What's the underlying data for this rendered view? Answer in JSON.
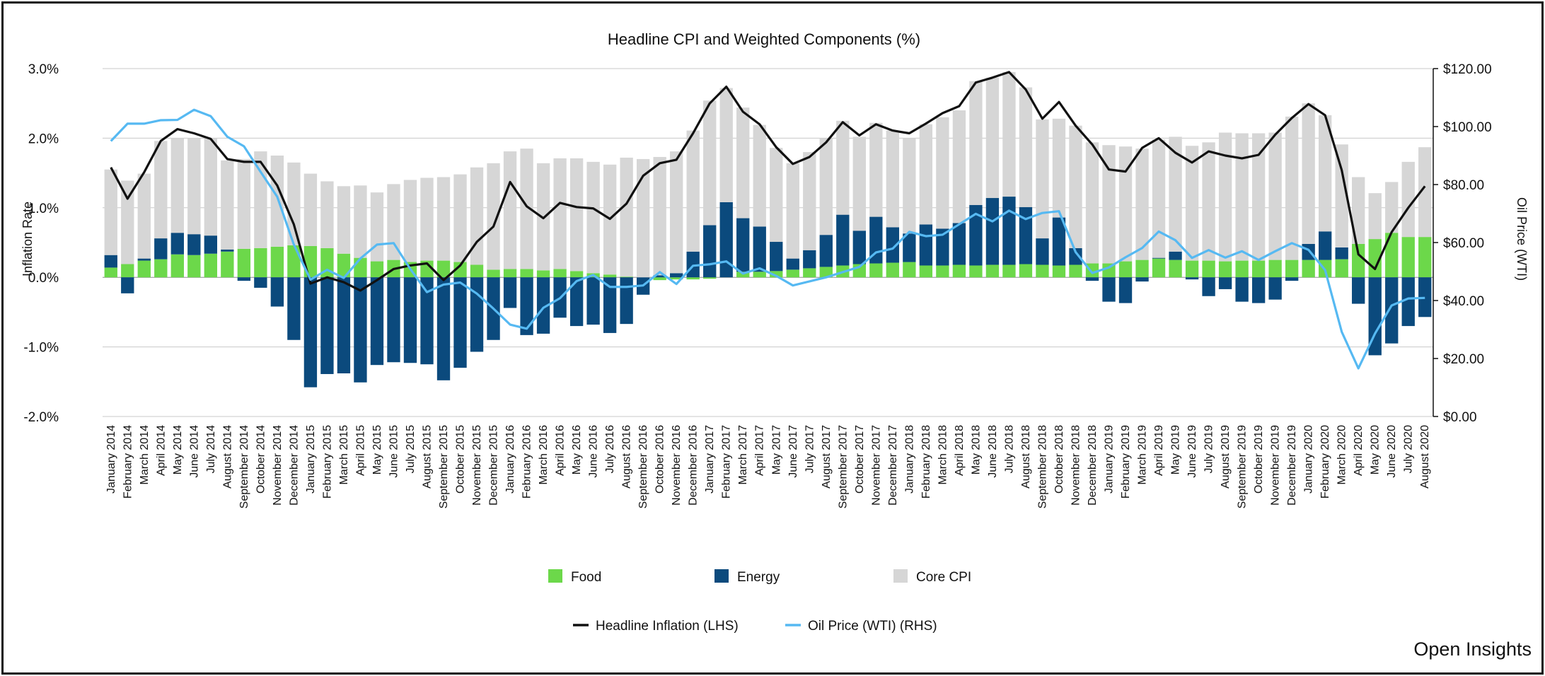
{
  "chart_data": {
    "type": "bar",
    "subtype": "stacked bar with line overlays",
    "title": "Headline CPI and Weighted Components (%)",
    "ylabel_left": "Inflation Rate",
    "ylabel_right": "Oil Price (WTI)",
    "ylim_left": [
      -2.0,
      3.0
    ],
    "ylim_right": [
      0,
      120
    ],
    "yticks_left": [
      "3.0%",
      "2.0%",
      "1.0%",
      "0.0%",
      "-1.0%",
      "-2.0%"
    ],
    "yticks_right": [
      "$120.00",
      "$100.00",
      "$80.00",
      "$60.00",
      "$40.00",
      "$20.00",
      "$0.00"
    ],
    "grid": true,
    "legend_position": "bottom",
    "categories": [
      "January 2014",
      "February 2014",
      "March 2014",
      "April 2014",
      "May 2014",
      "June 2014",
      "July 2014",
      "August 2014",
      "September 2014",
      "October 2014",
      "November 2014",
      "December 2014",
      "January 2015",
      "February 2015",
      "March 2015",
      "April 2015",
      "May 2015",
      "June 2015",
      "July 2015",
      "August 2015",
      "September 2015",
      "October 2015",
      "November 2015",
      "December 2015",
      "January 2016",
      "February 2016",
      "March 2016",
      "April 2016",
      "May 2016",
      "June 2016",
      "July 2016",
      "August 2016",
      "September 2016",
      "October 2016",
      "November 2016",
      "December 2016",
      "January 2017",
      "February 2017",
      "March 2017",
      "April 2017",
      "May 2017",
      "June 2017",
      "July 2017",
      "August 2017",
      "September 2017",
      "October 2017",
      "November 2017",
      "December 2017",
      "January 2018",
      "February 2018",
      "March 2018",
      "April 2018",
      "May 2018",
      "June 2018",
      "July 2018",
      "August 2018",
      "September 2018",
      "October 2018",
      "November 2018",
      "December 2018",
      "January 2019",
      "February 2019",
      "March 2019",
      "April 2019",
      "May 2019",
      "June 2019",
      "July 2019",
      "August 2019",
      "September 2019",
      "October 2019",
      "November 2019",
      "December 2019",
      "January 2020",
      "February 2020",
      "March 2020",
      "April 2020",
      "May 2020",
      "June 2020",
      "July 2020",
      "August 2020"
    ],
    "xtick_labels": [
      "January 2014",
      "February 2014",
      "March 2014",
      "April 2014",
      "May 2014",
      "June 2014",
      "July 2014",
      "August 2014",
      "September 2014",
      "October 2014",
      "November 2014",
      "December 2014",
      "January 2015",
      "February 2015",
      "March 2015",
      "April 2015",
      "May 2015",
      "June 2015",
      "July 2015",
      "August 2015",
      "September 2015",
      "October 2015",
      "November 2015",
      "December 2015",
      "January 2016",
      "February 2016",
      "March 2016",
      "April 2016",
      "May 2016",
      "June 2016",
      "July 2016",
      "August 2016",
      "September 2016",
      "October 2016",
      "November 2016",
      "December 2016",
      "January 2017",
      "February 2017",
      "March 2017",
      "April 2017",
      "May 2017",
      "June 2017",
      "July 2017",
      "August 2017",
      "September 2017",
      "October 2017",
      "November 2017",
      "December 2017",
      "January 2018",
      "February 2018",
      "March 2018",
      "April 2018",
      "May 2018",
      "June 2018",
      "July 2018",
      "August 2018",
      "September 2018",
      "October 2018",
      "November 2018",
      "December 2018",
      "January 2019",
      "February 2019",
      "March 2019",
      "April 2019",
      "May 2019",
      "June 2019",
      "July 2019",
      "August 2019",
      "September 2019",
      "October 2019",
      "November 2019",
      "December 2019",
      "January 2020",
      "February 2020",
      "March 2020",
      "April 2020",
      "May 2020",
      "June 2020",
      "July 2020",
      "August 2020"
    ],
    "bar_series": [
      {
        "name": "Food",
        "color": "#6cd84a",
        "values": [
          0.14,
          0.19,
          0.24,
          0.26,
          0.33,
          0.32,
          0.34,
          0.37,
          0.41,
          0.42,
          0.44,
          0.46,
          0.45,
          0.42,
          0.34,
          0.28,
          0.23,
          0.25,
          0.22,
          0.24,
          0.24,
          0.22,
          0.18,
          0.11,
          0.12,
          0.12,
          0.1,
          0.12,
          0.09,
          0.06,
          0.04,
          0.01,
          0.0,
          -0.04,
          -0.03,
          -0.03,
          -0.02,
          0.0,
          0.08,
          0.08,
          0.09,
          0.11,
          0.13,
          0.15,
          0.17,
          0.19,
          0.2,
          0.21,
          0.22,
          0.17,
          0.17,
          0.18,
          0.17,
          0.18,
          0.18,
          0.19,
          0.18,
          0.17,
          0.18,
          0.2,
          0.2,
          0.23,
          0.25,
          0.27,
          0.25,
          0.24,
          0.24,
          0.23,
          0.24,
          0.24,
          0.25,
          0.25,
          0.25,
          0.25,
          0.26,
          0.48,
          0.55,
          0.64,
          0.58,
          0.58
        ]
      },
      {
        "name": "Energy",
        "color": "#0b4a7d",
        "values": [
          0.18,
          -0.23,
          0.03,
          0.3,
          0.31,
          0.3,
          0.26,
          0.03,
          -0.05,
          -0.15,
          -0.42,
          -0.9,
          -1.58,
          -1.39,
          -1.38,
          -1.51,
          -1.26,
          -1.22,
          -1.23,
          -1.25,
          -1.48,
          -1.3,
          -1.07,
          -0.9,
          -0.44,
          -0.83,
          -0.81,
          -0.58,
          -0.7,
          -0.68,
          -0.8,
          -0.67,
          -0.25,
          0.03,
          0.06,
          0.37,
          0.75,
          1.08,
          0.77,
          0.65,
          0.42,
          0.16,
          0.26,
          0.46,
          0.73,
          0.48,
          0.67,
          0.51,
          0.41,
          0.59,
          0.53,
          0.6,
          0.87,
          0.96,
          0.98,
          0.82,
          0.38,
          0.69,
          0.24,
          -0.05,
          -0.35,
          -0.37,
          -0.06,
          0.01,
          0.12,
          -0.03,
          -0.27,
          -0.17,
          -0.35,
          -0.37,
          -0.32,
          -0.05,
          0.23,
          0.41,
          0.17,
          -0.38,
          -1.12,
          -0.95,
          -0.7,
          -0.57
        ]
      },
      {
        "name": "Core CPI",
        "color": "#d6d6d6",
        "values": [
          1.23,
          1.2,
          1.22,
          1.4,
          1.36,
          1.38,
          1.4,
          1.28,
          1.29,
          1.39,
          1.31,
          1.19,
          1.04,
          0.96,
          0.97,
          1.04,
          0.99,
          1.09,
          1.18,
          1.19,
          1.2,
          1.26,
          1.4,
          1.53,
          1.69,
          1.73,
          1.54,
          1.59,
          1.62,
          1.6,
          1.58,
          1.71,
          1.7,
          1.7,
          1.75,
          1.74,
          1.79,
          1.64,
          1.59,
          1.46,
          1.35,
          1.37,
          1.41,
          1.39,
          1.35,
          1.35,
          1.35,
          1.39,
          1.37,
          1.44,
          1.6,
          1.62,
          1.78,
          1.73,
          1.79,
          1.72,
          1.71,
          1.42,
          1.76,
          1.74,
          1.7,
          1.65,
          1.6,
          1.7,
          1.65,
          1.65,
          1.7,
          1.85,
          1.83,
          1.83,
          1.83,
          2.06,
          2.02,
          1.67,
          1.48,
          0.96,
          0.66,
          0.73,
          1.08,
          1.29
        ]
      }
    ],
    "line_series": [
      {
        "name": "Headline Inflation (LHS)",
        "color": "#111111",
        "axis": "left",
        "values": [
          1.58,
          1.13,
          1.51,
          1.96,
          2.13,
          2.07,
          1.99,
          1.7,
          1.66,
          1.66,
          1.32,
          0.76,
          -0.09,
          0.0,
          -0.07,
          -0.19,
          -0.04,
          0.12,
          0.17,
          0.2,
          -0.04,
          0.17,
          0.51,
          0.73,
          1.37,
          1.02,
          0.85,
          1.07,
          1.01,
          0.99,
          0.84,
          1.06,
          1.46,
          1.64,
          1.69,
          2.07,
          2.5,
          2.74,
          2.38,
          2.2,
          1.87,
          1.63,
          1.73,
          1.94,
          2.23,
          2.04,
          2.2,
          2.11,
          2.07,
          2.21,
          2.36,
          2.46,
          2.8,
          2.87,
          2.95,
          2.7,
          2.28,
          2.52,
          2.18,
          1.91,
          1.55,
          1.52,
          1.86,
          2.0,
          1.79,
          1.65,
          1.81,
          1.75,
          1.71,
          1.76,
          2.05,
          2.29,
          2.49,
          2.33,
          1.54,
          0.33,
          0.12,
          0.65,
          1.0,
          1.31
        ]
      },
      {
        "name": "Oil Price (WTI) (RHS)",
        "color": "#56b9f2",
        "axis": "right",
        "values": [
          95.0,
          101.0,
          101.0,
          102.2,
          102.3,
          105.8,
          103.6,
          96.5,
          93.2,
          84.4,
          75.8,
          59.3,
          47.2,
          50.6,
          47.8,
          54.5,
          59.3,
          59.8,
          50.9,
          42.9,
          45.5,
          46.2,
          42.4,
          37.2,
          31.7,
          30.3,
          37.5,
          40.8,
          46.7,
          48.8,
          44.7,
          44.7,
          45.2,
          49.8,
          45.7,
          52.0,
          52.5,
          53.5,
          49.3,
          51.1,
          48.5,
          45.2,
          46.6,
          48.0,
          49.8,
          51.6,
          56.6,
          57.9,
          63.7,
          62.2,
          62.7,
          66.3,
          69.9,
          67.3,
          71.0,
          68.1,
          70.2,
          70.8,
          56.7,
          49.5,
          51.4,
          54.9,
          58.1,
          63.8,
          60.8,
          54.7,
          57.4,
          54.8,
          57.0,
          54.0,
          57.0,
          59.8,
          57.5,
          50.5,
          29.2,
          16.6,
          28.6,
          38.3,
          40.7,
          40.9
        ]
      }
    ],
    "legend": {
      "row1": [
        "Food",
        "Energy",
        "Core CPI"
      ],
      "row2": [
        "Headline Inflation (LHS)",
        "Oil Price (WTI) (RHS)"
      ]
    }
  },
  "brand": "Open Insights"
}
